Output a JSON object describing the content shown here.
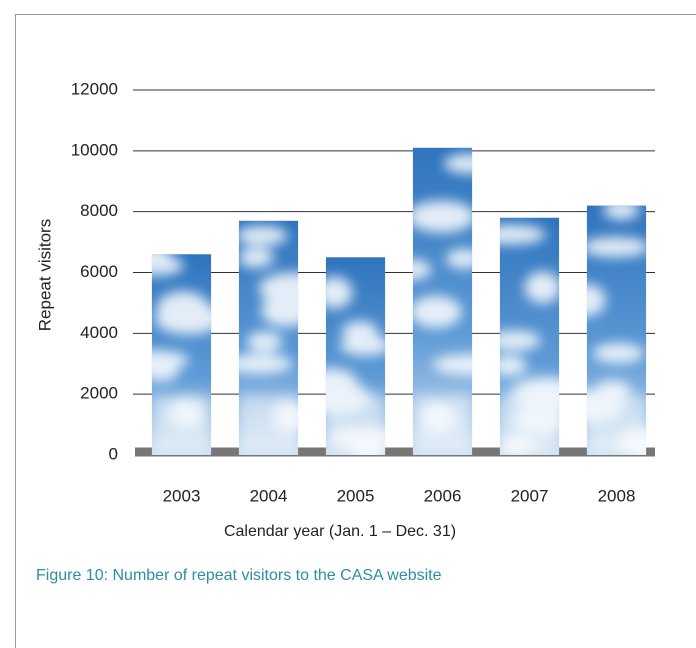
{
  "chart_data": {
    "type": "bar",
    "caption": "Figure 10: Number of repeat visitors to the CASA website",
    "ylabel": "Repeat visitors",
    "xlabel": "Calendar year (Jan. 1 – Dec. 31)",
    "categories": [
      "2003",
      "2004",
      "2005",
      "2006",
      "2007",
      "2008"
    ],
    "values": [
      6600,
      7700,
      6500,
      10100,
      7800,
      8200
    ],
    "color": "#3f86c9",
    "ylim": [
      0,
      12000
    ],
    "yticks": [
      0,
      2000,
      4000,
      6000,
      8000,
      10000,
      12000
    ],
    "grid": true
  }
}
